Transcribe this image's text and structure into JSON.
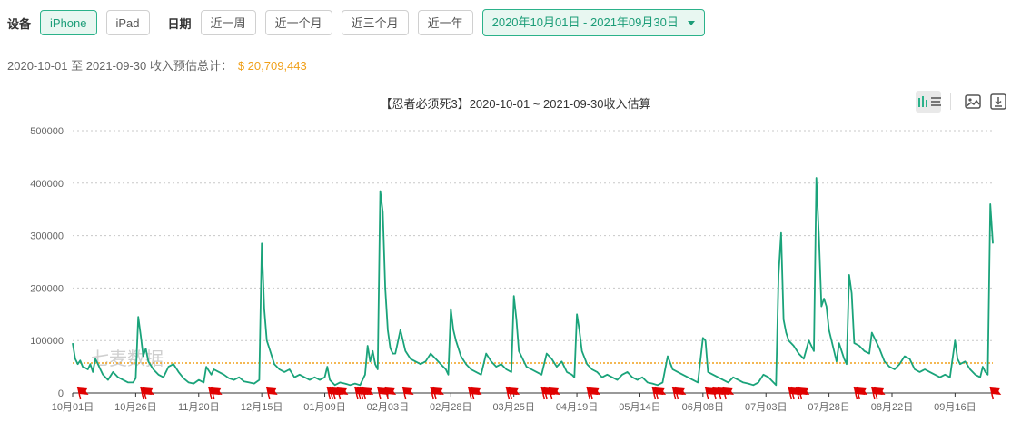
{
  "filters": {
    "device_label": "设备",
    "devices": [
      "iPhone",
      "iPad"
    ],
    "device_selected": "iPhone",
    "date_label": "日期",
    "quick_ranges": [
      "近一周",
      "近一个月",
      "近三个月",
      "近一年"
    ],
    "date_range": "2020年10月01日 - 2021年09月30日"
  },
  "summary": {
    "text": "2020-10-01 至 2021-09-30 收入预估总计：",
    "amount": "$ 20,709,443"
  },
  "watermark": "七麦数据",
  "colors": {
    "accent": "#2bb28a",
    "line": "#1aa37a",
    "average": "#f0a01a",
    "flag": "#e00000"
  },
  "chart_data": {
    "type": "line",
    "title": "【忍者必须死3】2020-10-01 ~ 2021-09-30收入估算",
    "ylim": [
      0,
      500000
    ],
    "yticks": [
      0,
      100000,
      200000,
      300000,
      400000,
      500000
    ],
    "ytick_labels": [
      "0",
      "100000",
      "200000",
      "300000",
      "400000",
      "500000"
    ],
    "xticks": [
      {
        "day": 0,
        "label": "10月01日"
      },
      {
        "day": 25,
        "label": "10月26日"
      },
      {
        "day": 50,
        "label": "11月20日"
      },
      {
        "day": 75,
        "label": "12月15日"
      },
      {
        "day": 100,
        "label": "01月09日"
      },
      {
        "day": 125,
        "label": "02月03日"
      },
      {
        "day": 150,
        "label": "02月28日"
      },
      {
        "day": 175,
        "label": "03月25日"
      },
      {
        "day": 200,
        "label": "04月19日"
      },
      {
        "day": 225,
        "label": "05月14日"
      },
      {
        "day": 250,
        "label": "06月08日"
      },
      {
        "day": 275,
        "label": "07月03日"
      },
      {
        "day": 300,
        "label": "07月28日"
      },
      {
        "day": 325,
        "label": "08月22日"
      },
      {
        "day": 350,
        "label": "09月16日"
      }
    ],
    "average": 57000,
    "series": [
      {
        "keypoints": [
          [
            0,
            95000
          ],
          [
            1,
            65000
          ],
          [
            2,
            55000
          ],
          [
            3,
            62000
          ],
          [
            4,
            50000
          ],
          [
            5,
            48000
          ],
          [
            6,
            45000
          ],
          [
            7,
            55000
          ],
          [
            8,
            40000
          ],
          [
            9,
            65000
          ],
          [
            10,
            55000
          ],
          [
            11,
            45000
          ],
          [
            12,
            35000
          ],
          [
            14,
            25000
          ],
          [
            16,
            40000
          ],
          [
            18,
            30000
          ],
          [
            20,
            25000
          ],
          [
            22,
            20000
          ],
          [
            24,
            20000
          ],
          [
            25,
            28000
          ],
          [
            26,
            145000
          ],
          [
            27,
            110000
          ],
          [
            28,
            70000
          ],
          [
            29,
            85000
          ],
          [
            30,
            60000
          ],
          [
            32,
            45000
          ],
          [
            34,
            35000
          ],
          [
            36,
            30000
          ],
          [
            38,
            50000
          ],
          [
            40,
            55000
          ],
          [
            42,
            40000
          ],
          [
            44,
            28000
          ],
          [
            46,
            20000
          ],
          [
            48,
            18000
          ],
          [
            50,
            25000
          ],
          [
            52,
            20000
          ],
          [
            53,
            50000
          ],
          [
            55,
            35000
          ],
          [
            56,
            45000
          ],
          [
            58,
            40000
          ],
          [
            60,
            35000
          ],
          [
            62,
            28000
          ],
          [
            64,
            25000
          ],
          [
            66,
            30000
          ],
          [
            68,
            22000
          ],
          [
            70,
            20000
          ],
          [
            72,
            18000
          ],
          [
            74,
            25000
          ],
          [
            75,
            285000
          ],
          [
            76,
            160000
          ],
          [
            77,
            100000
          ],
          [
            78,
            85000
          ],
          [
            80,
            55000
          ],
          [
            82,
            45000
          ],
          [
            84,
            40000
          ],
          [
            86,
            45000
          ],
          [
            88,
            30000
          ],
          [
            90,
            35000
          ],
          [
            92,
            30000
          ],
          [
            94,
            25000
          ],
          [
            96,
            30000
          ],
          [
            98,
            25000
          ],
          [
            100,
            30000
          ],
          [
            101,
            50000
          ],
          [
            102,
            25000
          ],
          [
            104,
            15000
          ],
          [
            106,
            20000
          ],
          [
            108,
            18000
          ],
          [
            110,
            15000
          ],
          [
            112,
            18000
          ],
          [
            114,
            15000
          ],
          [
            116,
            35000
          ],
          [
            117,
            90000
          ],
          [
            118,
            60000
          ],
          [
            119,
            80000
          ],
          [
            120,
            55000
          ],
          [
            121,
            45000
          ],
          [
            122,
            385000
          ],
          [
            123,
            345000
          ],
          [
            124,
            200000
          ],
          [
            125,
            120000
          ],
          [
            126,
            85000
          ],
          [
            127,
            75000
          ],
          [
            128,
            75000
          ],
          [
            130,
            120000
          ],
          [
            131,
            100000
          ],
          [
            132,
            80000
          ],
          [
            134,
            65000
          ],
          [
            136,
            60000
          ],
          [
            138,
            55000
          ],
          [
            140,
            60000
          ],
          [
            142,
            75000
          ],
          [
            144,
            65000
          ],
          [
            146,
            55000
          ],
          [
            148,
            45000
          ],
          [
            149,
            35000
          ],
          [
            150,
            160000
          ],
          [
            151,
            120000
          ],
          [
            152,
            100000
          ],
          [
            154,
            70000
          ],
          [
            156,
            55000
          ],
          [
            158,
            45000
          ],
          [
            160,
            40000
          ],
          [
            162,
            35000
          ],
          [
            164,
            75000
          ],
          [
            166,
            60000
          ],
          [
            168,
            50000
          ],
          [
            170,
            55000
          ],
          [
            172,
            45000
          ],
          [
            174,
            40000
          ],
          [
            175,
            185000
          ],
          [
            176,
            140000
          ],
          [
            177,
            80000
          ],
          [
            178,
            70000
          ],
          [
            180,
            50000
          ],
          [
            182,
            45000
          ],
          [
            184,
            40000
          ],
          [
            186,
            35000
          ],
          [
            188,
            75000
          ],
          [
            190,
            65000
          ],
          [
            192,
            50000
          ],
          [
            194,
            60000
          ],
          [
            196,
            40000
          ],
          [
            198,
            35000
          ],
          [
            199,
            30000
          ],
          [
            200,
            150000
          ],
          [
            201,
            120000
          ],
          [
            202,
            80000
          ],
          [
            204,
            55000
          ],
          [
            206,
            45000
          ],
          [
            208,
            40000
          ],
          [
            210,
            30000
          ],
          [
            212,
            35000
          ],
          [
            214,
            30000
          ],
          [
            216,
            25000
          ],
          [
            218,
            35000
          ],
          [
            220,
            40000
          ],
          [
            222,
            30000
          ],
          [
            224,
            25000
          ],
          [
            226,
            30000
          ],
          [
            228,
            20000
          ],
          [
            230,
            18000
          ],
          [
            232,
            15000
          ],
          [
            234,
            20000
          ],
          [
            236,
            70000
          ],
          [
            238,
            45000
          ],
          [
            240,
            40000
          ],
          [
            242,
            35000
          ],
          [
            244,
            30000
          ],
          [
            246,
            25000
          ],
          [
            248,
            20000
          ],
          [
            250,
            105000
          ],
          [
            251,
            100000
          ],
          [
            252,
            40000
          ],
          [
            254,
            35000
          ],
          [
            256,
            30000
          ],
          [
            258,
            25000
          ],
          [
            260,
            20000
          ],
          [
            262,
            30000
          ],
          [
            264,
            25000
          ],
          [
            266,
            20000
          ],
          [
            268,
            18000
          ],
          [
            270,
            15000
          ],
          [
            272,
            20000
          ],
          [
            274,
            35000
          ],
          [
            276,
            30000
          ],
          [
            278,
            20000
          ],
          [
            279,
            15000
          ],
          [
            280,
            225000
          ],
          [
            281,
            305000
          ],
          [
            282,
            140000
          ],
          [
            283,
            115000
          ],
          [
            284,
            100000
          ],
          [
            286,
            90000
          ],
          [
            288,
            75000
          ],
          [
            290,
            65000
          ],
          [
            292,
            100000
          ],
          [
            294,
            80000
          ],
          [
            295,
            410000
          ],
          [
            296,
            300000
          ],
          [
            297,
            165000
          ],
          [
            298,
            180000
          ],
          [
            299,
            165000
          ],
          [
            300,
            120000
          ],
          [
            302,
            80000
          ],
          [
            303,
            60000
          ],
          [
            304,
            95000
          ],
          [
            306,
            65000
          ],
          [
            307,
            55000
          ],
          [
            308,
            225000
          ],
          [
            309,
            190000
          ],
          [
            310,
            95000
          ],
          [
            312,
            90000
          ],
          [
            314,
            80000
          ],
          [
            316,
            75000
          ],
          [
            317,
            115000
          ],
          [
            318,
            105000
          ],
          [
            320,
            85000
          ],
          [
            322,
            60000
          ],
          [
            324,
            50000
          ],
          [
            326,
            45000
          ],
          [
            328,
            55000
          ],
          [
            330,
            70000
          ],
          [
            332,
            65000
          ],
          [
            334,
            45000
          ],
          [
            336,
            40000
          ],
          [
            338,
            45000
          ],
          [
            340,
            40000
          ],
          [
            342,
            35000
          ],
          [
            344,
            30000
          ],
          [
            346,
            35000
          ],
          [
            348,
            30000
          ],
          [
            350,
            100000
          ],
          [
            351,
            65000
          ],
          [
            352,
            55000
          ],
          [
            354,
            60000
          ],
          [
            356,
            45000
          ],
          [
            358,
            35000
          ],
          [
            360,
            30000
          ],
          [
            361,
            50000
          ],
          [
            362,
            40000
          ],
          [
            363,
            35000
          ],
          [
            364,
            360000
          ],
          [
            365,
            285000
          ]
        ]
      }
    ],
    "event_flag_days": [
      2,
      27,
      28,
      54,
      55,
      77,
      101,
      102,
      103,
      105,
      112,
      113,
      114,
      115,
      121,
      124,
      131,
      142,
      143,
      157,
      158,
      172,
      173,
      186,
      187,
      189,
      204,
      205,
      230,
      231,
      238,
      239,
      251,
      254,
      256,
      258,
      284,
      285,
      287,
      288,
      310,
      311,
      317,
      318,
      364
    ]
  }
}
